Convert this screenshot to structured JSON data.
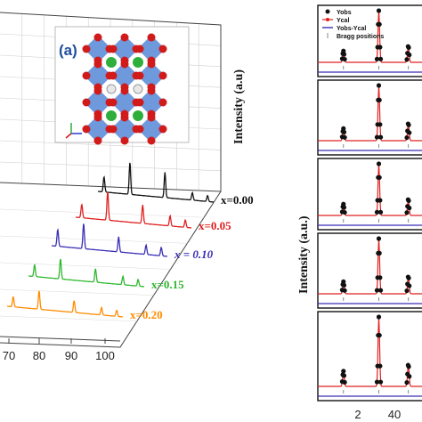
{
  "panel_a": {
    "label": "(a)",
    "ylabel": "Intensity (a.u)",
    "x_ticks": [
      "70",
      "80",
      "90",
      "100"
    ],
    "chart_data": {
      "type": "line",
      "xlim": [
        62,
        100
      ],
      "series": [
        {
          "name": "x=0.00",
          "color": "#111111",
          "peaks": [
            [
              64,
              0.45
            ],
            [
              72.5,
              0.95
            ],
            [
              84,
              0.75
            ],
            [
              93,
              0.22
            ],
            [
              98,
              0.18
            ]
          ]
        },
        {
          "name": "x=0.05",
          "color": "#e02020",
          "peaks": [
            [
              64,
              0.4
            ],
            [
              72.5,
              0.85
            ],
            [
              84,
              0.55
            ],
            [
              93,
              0.3
            ],
            [
              98,
              0.22
            ]
          ]
        },
        {
          "name": "x = 0.10",
          "color": "#3a2fb5",
          "peaks": [
            [
              64,
              0.5
            ],
            [
              72.5,
              0.75
            ],
            [
              84,
              0.45
            ],
            [
              93,
              0.28
            ],
            [
              98,
              0.25
            ]
          ]
        },
        {
          "name": "x=0.15",
          "color": "#2eb82e",
          "peaks": [
            [
              64,
              0.35
            ],
            [
              72.5,
              0.6
            ],
            [
              84,
              0.4
            ],
            [
              93,
              0.25
            ],
            [
              98,
              0.2
            ]
          ]
        },
        {
          "name": "x=0.20",
          "color": "#ff8c00",
          "peaks": [
            [
              64,
              0.3
            ],
            [
              72.5,
              0.55
            ],
            [
              84,
              0.35
            ],
            [
              93,
              0.22
            ],
            [
              98,
              0.18
            ]
          ]
        }
      ]
    }
  },
  "panel_b": {
    "ylabel": "Intensity (a.u.)",
    "x_tick": "40",
    "x_tick_other": "2",
    "legend": [
      {
        "label": "Yobs",
        "marker": "circle",
        "color": "#111111"
      },
      {
        "label": "Ycal",
        "marker": "line-dot",
        "color": "#e02020"
      },
      {
        "label": "Yobs-Ycal",
        "marker": "line",
        "color": "#3a2fb5"
      },
      {
        "label": "Bragg positions",
        "marker": "tick",
        "color": "#888888"
      }
    ],
    "chart_data": {
      "type": "line",
      "xlim": [
        17,
        48
      ],
      "panels": 5,
      "peaks": [
        [
          23.5,
          0.22
        ],
        [
          32.5,
          1.0
        ],
        [
          40,
          0.32
        ],
        [
          46.5,
          0.3
        ]
      ]
    }
  }
}
